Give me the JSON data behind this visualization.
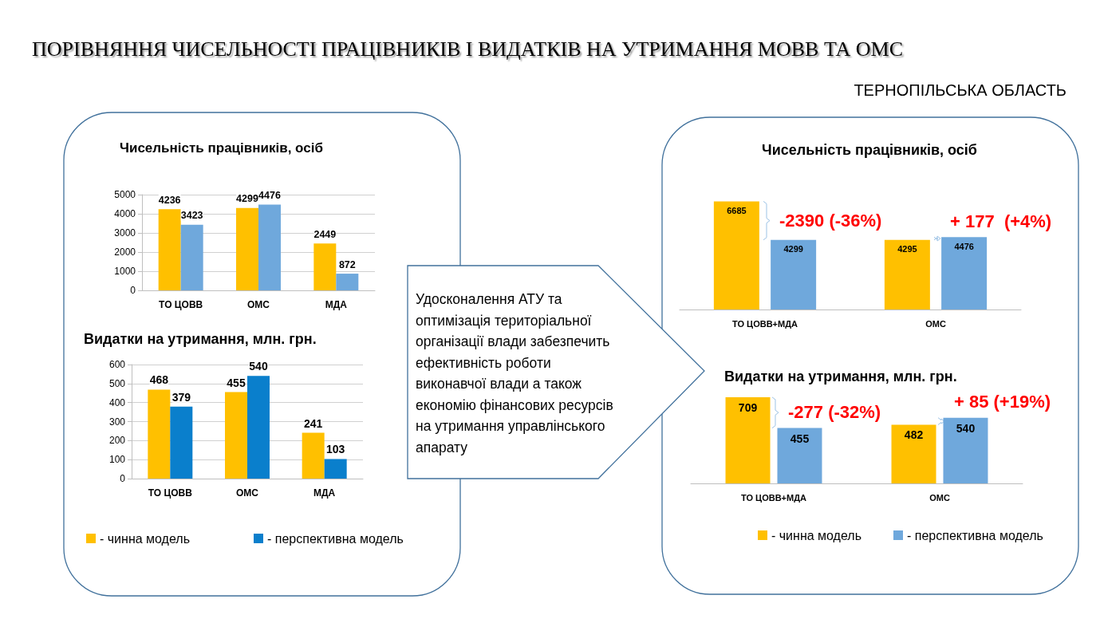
{
  "chart_data": [
    {
      "type": "other",
      "title": "ПОРІВНЯННЯ ЧИСЕЛЬНОСТІ ПРАЦІВНИКІВ І ВИДАТКІВ НА УТРИМАННЯ МОВВ ТА ОМС",
      "subtitle": "ТЕРНОПІЛЬСЬКА ОБЛАСТЬ",
      "annotations": [
        "Удосконалення АТУ та оптимізація територіальної організації влади забезпечить ефективність роботи виконавчої влади а також економію фінансових ресурсів на утримання управлінського апарату"
      ]
    },
    {
      "type": "bar",
      "title": "Чисельність працівників, осіб",
      "categories": [
        "ТО ЦОВВ",
        "ОМС",
        "МДА"
      ],
      "series": [
        {
          "color": "#ffc000",
          "values": [
            4236,
            4299,
            2449
          ]
        },
        {
          "color": "#6fa8dc",
          "values": [
            3423,
            4476,
            872
          ]
        }
      ],
      "ylim": [
        0,
        5000
      ],
      "yticks": [
        0,
        1000,
        2000,
        3000,
        4000,
        5000
      ],
      "grid": "y",
      "data_labels": true
    },
    {
      "type": "bar",
      "title": "Видатки на утримання, млн. грн.",
      "categories": [
        "ТО ЦОВВ",
        "ОМС",
        "МДА"
      ],
      "series": [
        {
          "name": "- чинна модель",
          "color": "#ffc000",
          "values": [
            468,
            455,
            241
          ]
        },
        {
          "name": "- перспективна модель",
          "color": "#0a7fcc",
          "values": [
            379,
            540,
            103
          ]
        }
      ],
      "ylim": [
        0,
        600
      ],
      "yticks": [
        0,
        100,
        200,
        300,
        400,
        500,
        600
      ],
      "grid": "y",
      "data_labels": true,
      "legend": "bottom"
    },
    {
      "type": "bar",
      "title": "Чисельність працівників, осіб",
      "categories": [
        "ТО ЦОВВ+МДА",
        "ОМС"
      ],
      "series": [
        {
          "color": "#ffc000",
          "values": [
            6685,
            4295
          ]
        },
        {
          "color": "#6fa8dc",
          "values": [
            4299,
            4476
          ]
        }
      ],
      "data_labels": true,
      "annotations": [
        "-2390 (-36%)",
        "+ 177  (+4%)"
      ]
    },
    {
      "type": "bar",
      "title": "Видатки на утримання, млн. грн.",
      "categories": [
        "ТО ЦОВВ+МДА",
        "ОМС"
      ],
      "series": [
        {
          "name": "- чинна модель",
          "color": "#ffc000",
          "values": [
            709,
            482
          ]
        },
        {
          "name": "- перспективна модель",
          "color": "#6fa8dc",
          "values": [
            455,
            540
          ]
        }
      ],
      "data_labels": true,
      "annotations": [
        "-277 (-32%)",
        "+ 85 (+19%)"
      ],
      "legend": "bottom"
    }
  ]
}
